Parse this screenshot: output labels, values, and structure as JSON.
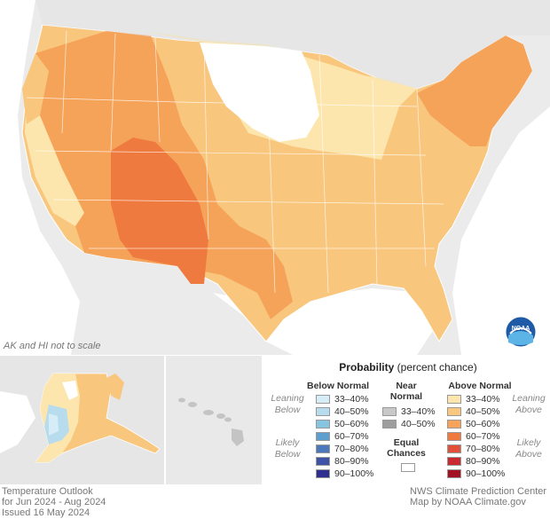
{
  "map": {
    "scale_note": "AK and HI not to scale",
    "regions": [
      {
        "name": "northeast",
        "category": "50–60%"
      },
      {
        "name": "southwest-core",
        "category": "60–70%"
      },
      {
        "name": "west",
        "category": "50–60%"
      },
      {
        "name": "great-plains-north",
        "category": "Equal Chances"
      },
      {
        "name": "midwest",
        "category": "33–40%"
      },
      {
        "name": "south",
        "category": "40–50%"
      }
    ]
  },
  "legend": {
    "title_bold": "Probability",
    "title_rest": " (percent chance)",
    "below_normal": {
      "heading": "Below Normal",
      "categories": [
        "33–40%",
        "40–50%",
        "50–60%",
        "60–70%",
        "70–80%",
        "80–90%",
        "90–100%"
      ],
      "colors": [
        "#d6ecf7",
        "#b7dced",
        "#86c4e2",
        "#5e9fd0",
        "#4b77bb",
        "#3e52a6",
        "#2e2f8f"
      ]
    },
    "near_normal": {
      "heading_line1": "Near",
      "heading_line2": "Normal",
      "categories": [
        "33–40%",
        "40–50%"
      ],
      "colors": [
        "#c8c8c8",
        "#9e9e9e"
      ]
    },
    "equal_chances": {
      "line1": "Equal",
      "line2": "Chances",
      "color": "#ffffff"
    },
    "above_normal": {
      "heading": "Above Normal",
      "categories": [
        "33–40%",
        "40–50%",
        "50–60%",
        "60–70%",
        "70–80%",
        "80–90%",
        "90–100%"
      ],
      "colors": [
        "#fde6ad",
        "#f9c67d",
        "#f6a35a",
        "#ee7a3f",
        "#e0503a",
        "#c92a2f",
        "#a30f23"
      ]
    },
    "leaning_below": [
      "Leaning",
      "Below"
    ],
    "likely_below": [
      "Likely",
      "Below"
    ],
    "leaning_above": [
      "Leaning",
      "Above"
    ],
    "likely_above": [
      "Likely",
      "Above"
    ]
  },
  "footer": {
    "left_line1": "Temperature Outlook",
    "left_line2": "for Jun 2024 - Aug 2024",
    "left_line3": "Issued 16 May 2024",
    "right_line1": "NWS Climate Prediction Center",
    "right_line2": "Map by NOAA Climate.gov"
  },
  "logo": {
    "text": "NOAA"
  }
}
